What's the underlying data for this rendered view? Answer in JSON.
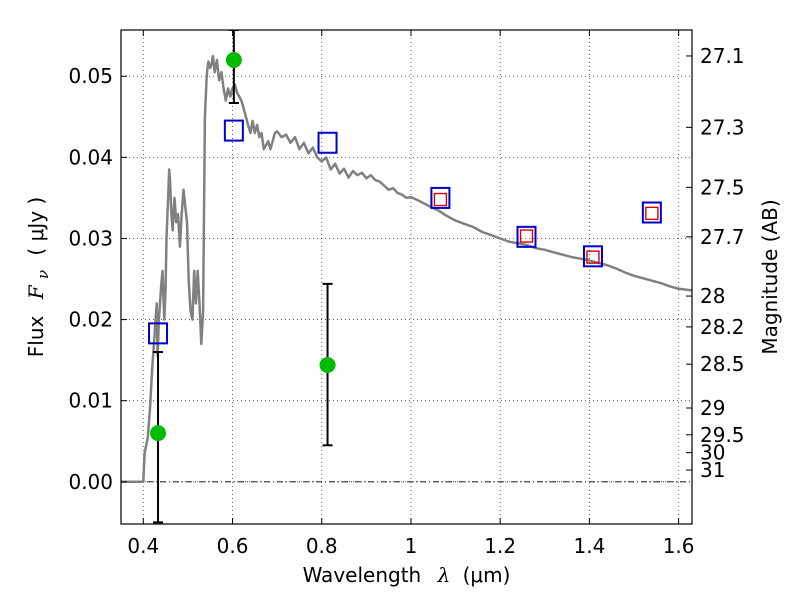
{
  "chart_data": {
    "type": "line",
    "xlabel": "Wavelength",
    "xlabel_symbol": "λ",
    "xlabel_unit": "(μm)",
    "ylabel_prefix": "Flux",
    "ylabel_symbol": "F",
    "ylabel_subscript": "ν",
    "ylabel_unit": "( μJy )",
    "y2label": "Magnitude (AB)",
    "xlim": [
      0.35,
      1.63
    ],
    "ylim": [
      -0.0052,
      0.0557
    ],
    "grid": true,
    "x_ticks": [
      0.4,
      0.6,
      0.8,
      1.0,
      1.2,
      1.4,
      1.6
    ],
    "x_tick_labels": [
      "0.4",
      "0.6",
      "0.8",
      "1",
      "1.2",
      "1.4",
      "1.6"
    ],
    "y_ticks": [
      0.0,
      0.01,
      0.02,
      0.03,
      0.04,
      0.05
    ],
    "y_tick_labels": [
      "0.00",
      "0.01",
      "0.02",
      "0.03",
      "0.04",
      "0.05"
    ],
    "y2_ticks": [
      {
        "label": "27.1",
        "flux": 0.0525
      },
      {
        "label": "27.3",
        "flux": 0.0437
      },
      {
        "label": "27.5",
        "flux": 0.0363
      },
      {
        "label": "27.7",
        "flux": 0.0302
      },
      {
        "label": "28",
        "flux": 0.0229
      },
      {
        "label": "28.2",
        "flux": 0.0191
      },
      {
        "label": "28.5",
        "flux": 0.0145
      },
      {
        "label": "29",
        "flux": 0.0091
      },
      {
        "label": "29.5",
        "flux": 0.0058
      },
      {
        "label": "30",
        "flux": 0.0036
      },
      {
        "label": "31",
        "flux": 0.00145
      }
    ],
    "series": [
      {
        "type": "line",
        "color": "#808080",
        "x": [
          0.35,
          0.4,
          0.403,
          0.41,
          0.415,
          0.42,
          0.425,
          0.43,
          0.432,
          0.435,
          0.44,
          0.443,
          0.447,
          0.45,
          0.452,
          0.455,
          0.458,
          0.46,
          0.463,
          0.466,
          0.47,
          0.474,
          0.478,
          0.482,
          0.486,
          0.49,
          0.494,
          0.498,
          0.502,
          0.506,
          0.51,
          0.514,
          0.518,
          0.522,
          0.526,
          0.53,
          0.534,
          0.538,
          0.542,
          0.544,
          0.546,
          0.55,
          0.553,
          0.556,
          0.56,
          0.565,
          0.57,
          0.575,
          0.58,
          0.585,
          0.59,
          0.595,
          0.6,
          0.605,
          0.61,
          0.615,
          0.62,
          0.625,
          0.63,
          0.635,
          0.64,
          0.645,
          0.65,
          0.655,
          0.66,
          0.665,
          0.67,
          0.675,
          0.68,
          0.685,
          0.69,
          0.695,
          0.7,
          0.71,
          0.72,
          0.73,
          0.74,
          0.75,
          0.76,
          0.77,
          0.78,
          0.79,
          0.8,
          0.81,
          0.82,
          0.83,
          0.84,
          0.85,
          0.86,
          0.87,
          0.88,
          0.89,
          0.9,
          0.91,
          0.92,
          0.93,
          0.94,
          0.95,
          0.96,
          0.97,
          0.98,
          0.99,
          1.0,
          1.02,
          1.04,
          1.06,
          1.08,
          1.1,
          1.12,
          1.14,
          1.16,
          1.18,
          1.2,
          1.22,
          1.24,
          1.26,
          1.28,
          1.3,
          1.32,
          1.34,
          1.36,
          1.38,
          1.4,
          1.42,
          1.44,
          1.46,
          1.48,
          1.5,
          1.52,
          1.54,
          1.56,
          1.58,
          1.6,
          1.63
        ],
        "y": [
          0.0,
          0.0,
          0.0035,
          0.0055,
          0.009,
          0.014,
          0.018,
          0.022,
          0.0155,
          0.02,
          0.024,
          0.026,
          0.02,
          0.024,
          0.03,
          0.034,
          0.0385,
          0.037,
          0.033,
          0.031,
          0.035,
          0.032,
          0.033,
          0.029,
          0.033,
          0.036,
          0.034,
          0.032,
          0.0245,
          0.021,
          0.02,
          0.026,
          0.022,
          0.026,
          0.022,
          0.017,
          0.021,
          0.045,
          0.05,
          0.051,
          0.0518,
          0.051,
          0.0515,
          0.0525,
          0.0505,
          0.052,
          0.0495,
          0.0505,
          0.0485,
          0.047,
          0.0485,
          0.0475,
          0.0485,
          0.049,
          0.048,
          0.0475,
          0.047,
          0.046,
          0.045,
          0.044,
          0.043,
          0.0445,
          0.043,
          0.044,
          0.0425,
          0.043,
          0.041,
          0.0415,
          0.042,
          0.041,
          0.042,
          0.043,
          0.0432,
          0.0425,
          0.0428,
          0.0418,
          0.0425,
          0.041,
          0.0418,
          0.0405,
          0.0412,
          0.04,
          0.0395,
          0.04,
          0.0385,
          0.0392,
          0.038,
          0.0386,
          0.0375,
          0.0383,
          0.0378,
          0.0381,
          0.0374,
          0.0378,
          0.0372,
          0.037,
          0.0365,
          0.036,
          0.0362,
          0.0356,
          0.0354,
          0.035,
          0.0351,
          0.0346,
          0.034,
          0.0335,
          0.0328,
          0.0322,
          0.0318,
          0.0314,
          0.0308,
          0.0304,
          0.03,
          0.0296,
          0.0294,
          0.0292,
          0.0288,
          0.0286,
          0.0283,
          0.028,
          0.0277,
          0.0275,
          0.0273,
          0.027,
          0.0267,
          0.0263,
          0.0258,
          0.0254,
          0.0251,
          0.0248,
          0.0245,
          0.0241,
          0.0238,
          0.0236
        ]
      },
      {
        "type": "scatter",
        "marker": "circle",
        "color": "#00bb00",
        "x": [
          0.433,
          0.603,
          0.813
        ],
        "y": [
          0.006,
          0.052,
          0.0144
        ],
        "yerr_low": [
          -0.005,
          0.0467,
          0.0045
        ],
        "yerr_high": [
          0.016,
          0.0557,
          0.0244
        ]
      },
      {
        "type": "scatter",
        "marker": "open-square",
        "color": "#0000cc",
        "x": [
          0.433,
          0.603,
          0.813,
          1.066,
          1.259,
          1.408,
          1.54
        ],
        "y": [
          0.0183,
          0.0433,
          0.0418,
          0.035,
          0.0302,
          0.0278,
          0.0332
        ]
      },
      {
        "type": "scatter",
        "marker": "small-open-square",
        "color": "#dd0000",
        "x": [
          1.066,
          1.259,
          1.408,
          1.54
        ],
        "y": [
          0.0348,
          0.0303,
          0.0277,
          0.0331
        ]
      }
    ]
  }
}
